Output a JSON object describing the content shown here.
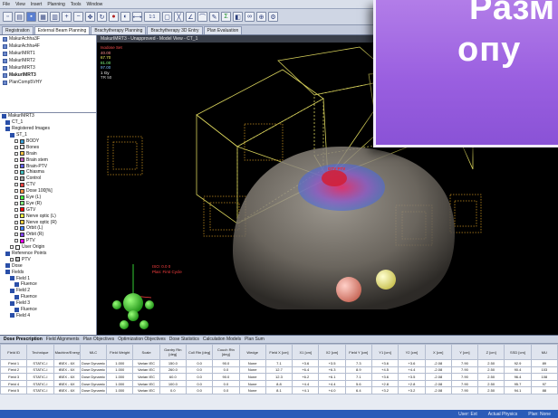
{
  "menu": [
    "File",
    "View",
    "Insert",
    "Planning",
    "Tools",
    "Window"
  ],
  "toolbar_combo": "1:1",
  "tabs": [
    {
      "label": "Registration"
    },
    {
      "label": "External Beam Planning",
      "active": true
    },
    {
      "label": "Brachytherapy Planning"
    },
    {
      "label": "Brachytherapy 3D Entry"
    },
    {
      "label": "Plan Evaluation"
    }
  ],
  "patients": [
    {
      "label": "MakurAchha3F"
    },
    {
      "label": "MakurAchha4F"
    },
    {
      "label": "MakurIMRT1"
    },
    {
      "label": "MakurIMRT2"
    },
    {
      "label": "MakurIMRT3"
    },
    {
      "label": "MakurIMRT3",
      "selected": true
    },
    {
      "label": "PlanComp5VHY"
    }
  ],
  "tree": [
    {
      "label": "MakurIMRT3",
      "level": 0,
      "kind": "folder"
    },
    {
      "label": "CT_1",
      "level": 1,
      "kind": "folder"
    },
    {
      "label": "Registered Images",
      "level": 1,
      "kind": "folder"
    },
    {
      "label": "ST_1",
      "level": 2,
      "kind": "folder"
    },
    {
      "label": "BODY",
      "level": 3,
      "color": "#3aa0d8"
    },
    {
      "label": "Bones",
      "level": 3,
      "color": "#e8e8e8"
    },
    {
      "label": "Brain",
      "level": 3,
      "color": "#f0c040"
    },
    {
      "label": "Brain stem",
      "level": 3,
      "color": "#c060c0"
    },
    {
      "label": "Brain-PTV",
      "level": 3,
      "color": "#6060ff"
    },
    {
      "label": "Chiasma",
      "level": 3,
      "color": "#40c0c0"
    },
    {
      "label": "Control",
      "level": 3,
      "color": "#a0a0a0"
    },
    {
      "label": "CTV",
      "level": 3,
      "color": "#ff4040"
    },
    {
      "label": "Dose 100[%]",
      "level": 3,
      "color": "#ff9040"
    },
    {
      "label": "Eye (L)",
      "level": 3,
      "color": "#40ff40"
    },
    {
      "label": "Eye (R)",
      "level": 3,
      "color": "#80ff80"
    },
    {
      "label": "GTV",
      "level": 3,
      "color": "#ff0000"
    },
    {
      "label": "Nerve optic (L)",
      "level": 3,
      "color": "#ffff40"
    },
    {
      "label": "Nerve optic (R)",
      "level": 3,
      "color": "#ffd040"
    },
    {
      "label": "Orbit (L)",
      "level": 3,
      "color": "#4080ff"
    },
    {
      "label": "Orbit (R)",
      "level": 3,
      "color": "#8040ff"
    },
    {
      "label": "PTV",
      "level": 3,
      "color": "#ff00ff"
    },
    {
      "label": "User Origin",
      "level": 2,
      "color": "#ffffff"
    },
    {
      "label": "Reference Points",
      "level": 1,
      "kind": "folder"
    },
    {
      "label": "PTV",
      "level": 2,
      "color": "#c0c0c0"
    },
    {
      "label": "Dose",
      "level": 1,
      "kind": "folder"
    },
    {
      "label": "Fields",
      "level": 1,
      "kind": "folder"
    },
    {
      "label": "Field 1",
      "level": 2,
      "kind": "folder"
    },
    {
      "label": "Fluence",
      "level": 3,
      "kind": "item"
    },
    {
      "label": "Field 2",
      "level": 2,
      "kind": "folder"
    },
    {
      "label": "Fluence",
      "level": 3,
      "kind": "item"
    },
    {
      "label": "Field 3",
      "level": 2,
      "kind": "folder"
    },
    {
      "label": "Fluence",
      "level": 3,
      "kind": "item"
    },
    {
      "label": "Field 4",
      "level": 2,
      "kind": "folder"
    }
  ],
  "viewer": {
    "title": "MakurIMRT3 - Unapproved - Model View - CT_1",
    "overlay_lines": [
      "Isodose Set",
      "40.00",
      "67.70",
      "81.00",
      "97.00",
      "1 Gy",
      "TR 50"
    ],
    "iso_label_lines": [
      "ISO: 0.0 0",
      "Plan: First Cycle"
    ],
    "target_label": "GTV PTV"
  },
  "callout": {
    "line1": "Paзм",
    "line2": "опу"
  },
  "bottom_tabs": [
    {
      "label": "Dose Prescription",
      "active": true
    },
    {
      "label": "Field Alignments"
    },
    {
      "label": "Plan Objectives"
    },
    {
      "label": "Optimization Objectives"
    },
    {
      "label": "Dose Statistics"
    },
    {
      "label": "Calculation Models"
    },
    {
      "label": "Plan Sum"
    }
  ],
  "table": {
    "headers": [
      "Field ID",
      "Technique",
      "Machine/Energy",
      "MLC",
      "Field Weight",
      "Scale",
      "Gantry Rtn [deg]",
      "Coll Rtn [deg]",
      "Couch Rtn [deg]",
      "Wedge",
      "Field X [cm]",
      "X1 [cm]",
      "X2 [cm]",
      "Field Y [cm]",
      "Y1 [cm]",
      "Y2 [cm]",
      "X [cm]",
      "Y [cm]",
      "Z [cm]",
      "SSD [cm]",
      "MU"
    ],
    "rows": [
      [
        "Field 1",
        "STATIC-I",
        "tBEX - 6X",
        "Dose Dynamic",
        "1.000",
        "Varian IEC",
        "150.0",
        "0.0",
        "90.0",
        "None",
        "7.1",
        "+3.6",
        "+3.5",
        "7.3",
        "+3.6",
        "+3.6",
        "-2.08",
        "7.90",
        "2.50",
        "92.9",
        "89"
      ],
      [
        "Field 2",
        "STATIC-I",
        "tBEX - 6X",
        "Dose Dynamic",
        "1.000",
        "Varian IEC",
        "260.0",
        "0.0",
        "0.0",
        "None",
        "12.7",
        "+6.4",
        "+6.3",
        "8.9",
        "+4.5",
        "+4.4",
        "-2.08",
        "7.90",
        "2.50",
        "90.4",
        "103"
      ],
      [
        "Field 3",
        "STATIC-I",
        "tBEX - 6X",
        "Dose Dynamic",
        "1.000",
        "Varian IEC",
        "60.0",
        "0.0",
        "90.0",
        "None",
        "12.3",
        "+6.2",
        "+6.1",
        "7.1",
        "+3.6",
        "+3.5",
        "-2.08",
        "7.90",
        "2.50",
        "96.4",
        "108"
      ],
      [
        "Field 4",
        "STATIC-I",
        "tBEX - 6X",
        "Dose Dynamic",
        "1.000",
        "Varian IEC",
        "100.0",
        "0.0",
        "0.0",
        "None",
        "8.8",
        "+4.4",
        "+4.4",
        "5.6",
        "+2.8",
        "+2.8",
        "-2.08",
        "7.90",
        "2.50",
        "95.7",
        "97"
      ],
      [
        "Field 5",
        "STATIC-I",
        "tBEX - 6X",
        "Dose Dynamic",
        "1.000",
        "Varian IEC",
        "0.0",
        "0.0",
        "0.0",
        "None",
        "8.1",
        "+4.1",
        "+4.0",
        "6.4",
        "+3.2",
        "+3.2",
        "-2.08",
        "7.90",
        "2.50",
        "94.1",
        "88"
      ]
    ]
  },
  "status": [
    "User: Ext",
    "Actual Physics",
    "Plan: None"
  ]
}
